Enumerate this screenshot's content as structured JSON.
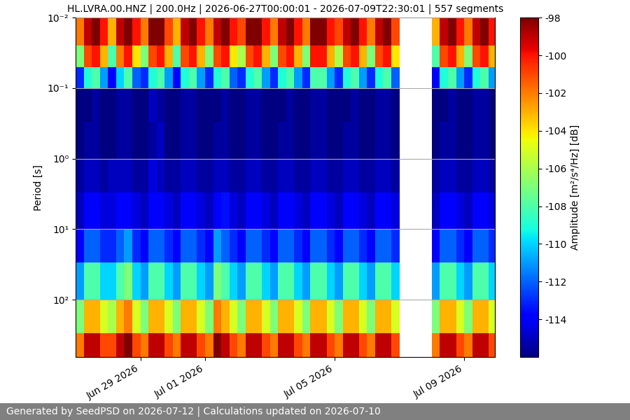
{
  "chart_data": {
    "type": "heatmap",
    "title": "HL.LVRA.00.HNZ | 200.0Hz | 2026-06-27T00:00:01 - 2026-07-09T22:30:01 | 557 segments",
    "y_label": "Period [s]",
    "footer": "Generated by SeedPSD on 2026-07-12 | Calculations updated on 2026-07-10",
    "log": "y",
    "grid": "y",
    "x": [
      "2026-06-27T00:00",
      "2026-06-27T06:00",
      "2026-06-27T12:00",
      "2026-06-27T18:00",
      "2026-06-28T00:00",
      "2026-06-28T06:00",
      "2026-06-28T12:00",
      "2026-06-28T18:00",
      "2026-06-29T00:00",
      "2026-06-29T06:00",
      "2026-06-29T12:00",
      "2026-06-29T18:00",
      "2026-06-30T00:00",
      "2026-06-30T06:00",
      "2026-06-30T12:00",
      "2026-06-30T18:00",
      "2026-07-01T00:00",
      "2026-07-01T06:00",
      "2026-07-01T12:00",
      "2026-07-01T18:00",
      "2026-07-02T00:00",
      "2026-07-02T06:00",
      "2026-07-02T12:00",
      "2026-07-02T18:00",
      "2026-07-03T00:00",
      "2026-07-03T06:00",
      "2026-07-03T12:00",
      "2026-07-03T18:00",
      "2026-07-04T00:00",
      "2026-07-04T06:00",
      "2026-07-04T12:00",
      "2026-07-04T18:00",
      "2026-07-05T00:00",
      "2026-07-05T06:00",
      "2026-07-05T12:00",
      "2026-07-05T18:00",
      "2026-07-06T00:00",
      "2026-07-06T06:00",
      "2026-07-06T12:00",
      "2026-07-06T18:00",
      "2026-07-07T00:00",
      "2026-07-07T06:00",
      "2026-07-07T12:00",
      "2026-07-07T18:00",
      "2026-07-08T00:00",
      "2026-07-08T06:00",
      "2026-07-08T12:00",
      "2026-07-08T18:00",
      "2026-07-09T00:00",
      "2026-07-09T06:00",
      "2026-07-09T12:00",
      "2026-07-09T18:00"
    ],
    "xlim": [
      "2026-06-27T00:00:01",
      "2026-07-09T22:30:01"
    ],
    "xticks": [
      {
        "value": "2026-06-29",
        "label": "Jun 29 2026"
      },
      {
        "value": "2026-07-01",
        "label": "Jul 01 2026"
      },
      {
        "value": "2026-07-05",
        "label": "Jul 05 2026"
      },
      {
        "value": "2026-07-09",
        "label": "Jul 09 2026"
      }
    ],
    "y_bins": [
      0.01,
      0.025,
      0.05,
      0.1,
      0.3,
      1,
      3,
      10,
      30,
      100,
      300,
      650
    ],
    "ylim": [
      650,
      0.01
    ],
    "yticks": [
      {
        "value": 0.01,
        "label": "10⁻²"
      },
      {
        "value": 0.1,
        "label": "10⁻¹"
      },
      {
        "value": 1,
        "label": "10⁰"
      },
      {
        "value": 10,
        "label": "10¹"
      },
      {
        "value": 100,
        "label": "10²"
      }
    ],
    "values": [
      [
        -102,
        -99,
        -98,
        -100,
        -103,
        -99,
        -98,
        -100,
        -102,
        -98,
        -98,
        -101,
        -103,
        -99,
        -98,
        -100,
        -102,
        -99,
        -98,
        -100,
        -101,
        -98,
        -98,
        -100,
        -102,
        -99,
        -98,
        -100,
        -102,
        -98,
        -98,
        -100,
        -101,
        -99,
        -98,
        -100,
        -102,
        -99,
        -98,
        -101,
        null,
        null,
        null,
        null,
        -103,
        -99,
        -98,
        -100,
        -102,
        -99,
        -98,
        -100
      ],
      [
        -107,
        -101,
        -100,
        -103,
        -108,
        -102,
        -100,
        -104,
        -107,
        -101,
        -100,
        -103,
        -108,
        -101,
        -100,
        -103,
        -107,
        -101,
        -100,
        -104,
        -106,
        -101,
        -100,
        -103,
        -107,
        -101,
        -100,
        -103,
        -107,
        -100,
        -100,
        -103,
        -106,
        -101,
        -100,
        -103,
        -107,
        -101,
        -100,
        -104,
        null,
        null,
        null,
        null,
        -108,
        -101,
        -100,
        -103,
        -107,
        -101,
        -100,
        -103
      ],
      [
        -113,
        -109,
        -108,
        -111,
        -114,
        -110,
        -108,
        -112,
        -113,
        -109,
        -108,
        -111,
        -114,
        -109,
        -108,
        -111,
        -113,
        -109,
        -108,
        -112,
        -113,
        -109,
        -108,
        -111,
        -113,
        -109,
        -108,
        -111,
        -113,
        -108,
        -108,
        -111,
        -113,
        -109,
        -108,
        -111,
        -113,
        -109,
        -108,
        -112,
        null,
        null,
        null,
        null,
        -114,
        -109,
        -108,
        -111,
        -113,
        -109,
        -108,
        -111
      ],
      [
        -116,
        -116,
        -115.5,
        -116,
        -116,
        -115.5,
        -115.5,
        -116,
        -116,
        -115,
        -115.5,
        -116,
        -116,
        -115.5,
        -115.5,
        -116,
        -116,
        -116,
        -115.5,
        -116,
        -116,
        -115.5,
        -115.5,
        -116,
        -116,
        -116,
        -115.5,
        -116,
        -116,
        -115.5,
        -115.5,
        -116,
        -116,
        -116,
        -115.5,
        -116,
        -116,
        -115.5,
        -115.5,
        -116,
        null,
        null,
        null,
        null,
        -116,
        -116,
        -115.5,
        -116,
        -116,
        -115.5,
        -115.5,
        -116
      ],
      [
        -116,
        -115.5,
        -115.5,
        -116,
        -116,
        -115.5,
        -115.5,
        -116,
        -116,
        -115.5,
        -115,
        -116,
        -116,
        -115.5,
        -115.5,
        -116,
        -116,
        -115.5,
        -115.5,
        -116,
        -116,
        -115.5,
        -115.5,
        -116,
        -116,
        -115.5,
        -115.5,
        -116,
        -116,
        -115.5,
        -115.5,
        -116,
        -116,
        -115.5,
        -115.5,
        -116,
        -116,
        -115.5,
        -115.5,
        -116,
        null,
        null,
        null,
        null,
        -116,
        -115.5,
        -115.5,
        -116,
        -116,
        -115.5,
        -115.5,
        -116
      ],
      [
        -115.5,
        -115,
        -115,
        -115.5,
        -115,
        -115,
        -115,
        -115.5,
        -115.5,
        -114.5,
        -115,
        -115.5,
        -115.5,
        -115,
        -115,
        -115.5,
        -115.5,
        -115,
        -115,
        -115.5,
        -115.5,
        -115,
        -115,
        -115.5,
        -115.5,
        -115,
        -115,
        -115.5,
        -115.5,
        -115,
        -115,
        -115.5,
        -115.5,
        -115,
        -115,
        -115.5,
        -115.5,
        -115,
        -115,
        -115.5,
        null,
        null,
        null,
        null,
        -115.5,
        -115,
        -115,
        -115.5,
        -115.5,
        -115,
        -115,
        -115.5
      ],
      [
        -115,
        -114,
        -114,
        -114.5,
        -114.5,
        -114,
        -114,
        -114.5,
        -115,
        -114,
        -114,
        -114.5,
        -115,
        -114,
        -114,
        -114.5,
        -115,
        -114,
        -113.5,
        -114.5,
        -115,
        -114,
        -114,
        -114.5,
        -115,
        -114,
        -114,
        -114.5,
        -115,
        -114,
        -114,
        -114.5,
        -115,
        -114,
        -114,
        -114.5,
        -115,
        -114,
        -114,
        -114.5,
        null,
        null,
        null,
        null,
        -115,
        -114,
        -114,
        -114.5,
        -115,
        -114,
        -114,
        -114.5
      ],
      [
        -114,
        -112,
        -112,
        -113,
        -113,
        -112,
        -111,
        -113,
        -114,
        -112,
        -112,
        -113,
        -114,
        -112,
        -112,
        -113,
        -114,
        -111,
        -112,
        -113,
        -114,
        -112,
        -112,
        -113,
        -114,
        -112,
        -112,
        -113,
        -114,
        -112,
        -112,
        -113,
        -114,
        -112,
        -112,
        -113,
        -114,
        -112,
        -112,
        -113,
        null,
        null,
        null,
        null,
        -114,
        -112,
        -112,
        -113,
        -114,
        -112,
        -112,
        -113
      ],
      [
        -111,
        -108,
        -108,
        -110,
        -110,
        -108,
        -107,
        -110,
        -111,
        -108,
        -108,
        -110,
        -111,
        -108,
        -108,
        -110,
        -111,
        -107,
        -108,
        -110,
        -111,
        -108,
        -108,
        -110,
        -111,
        -108,
        -108,
        -110,
        -111,
        -108,
        -108,
        -110,
        -111,
        -108,
        -108,
        -110,
        -111,
        -108,
        -108,
        -110,
        null,
        null,
        null,
        null,
        -111,
        -108,
        -108,
        -110,
        -111,
        -108,
        -108,
        -110
      ],
      [
        -107,
        -103,
        -103,
        -105,
        -106,
        -103,
        -102,
        -105,
        -107,
        -103,
        -103,
        -105,
        -107,
        -103,
        -103,
        -105,
        -107,
        -102,
        -103,
        -105,
        -107,
        -103,
        -103,
        -105,
        -107,
        -103,
        -103,
        -105,
        -107,
        -103,
        -103,
        -105,
        -107,
        -103,
        -103,
        -105,
        -107,
        -103,
        -103,
        -105,
        null,
        null,
        null,
        null,
        -107,
        -103,
        -103,
        -105,
        -107,
        -103,
        -103,
        -105
      ],
      [
        -102,
        -99,
        -99,
        -101,
        -101,
        -99,
        -98,
        -101,
        -102,
        -99,
        -99,
        -101,
        -102,
        -99,
        -99,
        -101,
        -102,
        -98,
        -99,
        -101,
        -102,
        -99,
        -99,
        -101,
        -102,
        -99,
        -99,
        -101,
        -102,
        -99,
        -99,
        -101,
        -102,
        -99,
        -99,
        -101,
        -102,
        -99,
        -99,
        -101,
        null,
        null,
        null,
        null,
        -102,
        -99,
        -99,
        -101,
        -102,
        -99,
        -99,
        -101
      ]
    ],
    "colorbar": {
      "label": "Amplitude [m²/s⁴/Hz] [dB]",
      "range": [
        -116,
        -98
      ],
      "ticks": [
        -98,
        -100,
        -102,
        -104,
        -106,
        -108,
        -110,
        -112,
        -114
      ]
    }
  }
}
